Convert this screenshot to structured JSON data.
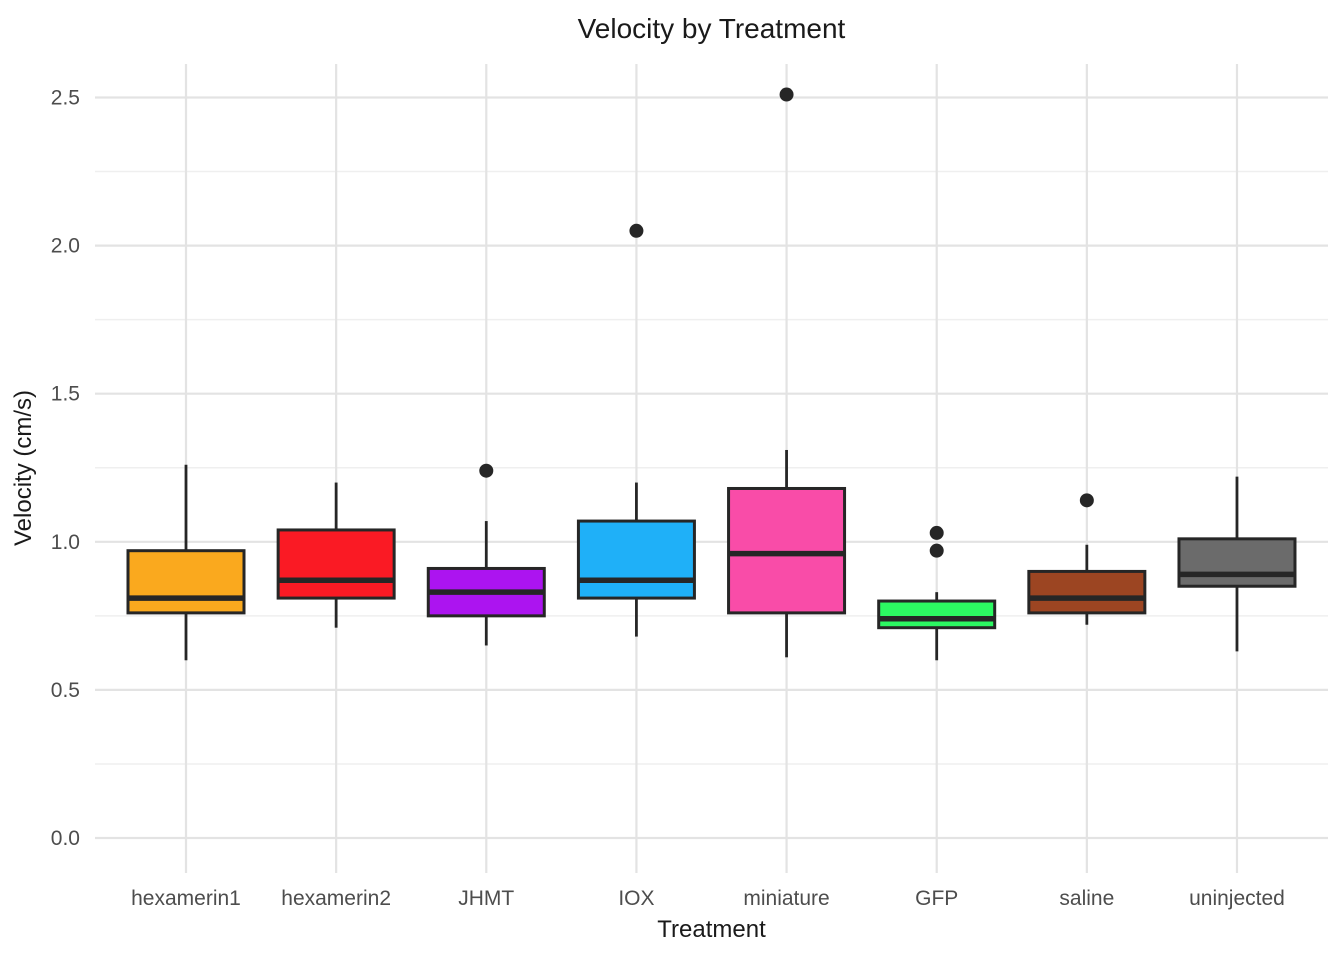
{
  "chart_data": {
    "type": "boxplot",
    "title": "Velocity by Treatment",
    "xlabel": "Treatment",
    "ylabel": "Velocity (cm/s)",
    "categories": [
      "hexamerin1",
      "hexamerin2",
      "JHMT",
      "IOX",
      "miniature",
      "GFP",
      "saline",
      "uninjected"
    ],
    "series": [
      {
        "name": "hexamerin1",
        "color": "#FAA91E",
        "min": 0.6,
        "q1": 0.76,
        "median": 0.81,
        "q3": 0.97,
        "max": 1.26,
        "outliers": []
      },
      {
        "name": "hexamerin2",
        "color": "#FA1A24",
        "min": 0.71,
        "q1": 0.81,
        "median": 0.87,
        "q3": 1.04,
        "max": 1.2,
        "outliers": []
      },
      {
        "name": "JHMT",
        "color": "#AC14F0",
        "min": 0.65,
        "q1": 0.75,
        "median": 0.83,
        "q3": 0.91,
        "max": 1.07,
        "outliers": [
          1.24
        ]
      },
      {
        "name": "IOX",
        "color": "#1FB0F8",
        "min": 0.68,
        "q1": 0.81,
        "median": 0.87,
        "q3": 1.07,
        "max": 1.2,
        "outliers": [
          2.05
        ]
      },
      {
        "name": "miniature",
        "color": "#F94CA8",
        "min": 0.61,
        "q1": 0.76,
        "median": 0.96,
        "q3": 1.18,
        "max": 1.31,
        "outliers": [
          2.51
        ]
      },
      {
        "name": "GFP",
        "color": "#2CF862",
        "min": 0.6,
        "q1": 0.71,
        "median": 0.74,
        "q3": 0.8,
        "max": 0.83,
        "outliers": [
          0.97,
          1.03
        ]
      },
      {
        "name": "saline",
        "color": "#9C4522",
        "min": 0.72,
        "q1": 0.76,
        "median": 0.81,
        "q3": 0.9,
        "max": 0.99,
        "outliers": [
          1.14
        ]
      },
      {
        "name": "uninjected",
        "color": "#6B6B6B",
        "min": 0.63,
        "q1": 0.85,
        "median": 0.89,
        "q3": 1.01,
        "max": 1.22,
        "outliers": []
      }
    ],
    "y_axis": {
      "ticks": [
        0.0,
        0.5,
        1.0,
        1.5,
        2.0,
        2.5
      ],
      "tick_labels": [
        "0.0",
        "0.5",
        "1.0",
        "1.5",
        "2.0",
        "2.5"
      ],
      "minor_ticks": [
        0.25,
        0.75,
        1.25,
        1.75,
        2.25
      ],
      "range": [
        -0.12,
        2.62
      ]
    },
    "grid": {
      "horizontal_major": true,
      "horizontal_minor": true,
      "vertical_at_categories": true
    },
    "legend": "none"
  },
  "style_colors": {
    "background": "#FFFFFF",
    "box_outline": "#262626",
    "outlier_dot": "#262626",
    "grid_major": "#E3E3E3",
    "grid_minor": "#EFEFEF",
    "tick_label": "#4D4D4D",
    "axis_title": "#1A1A1A",
    "chart_title": "#1A1A1A"
  }
}
